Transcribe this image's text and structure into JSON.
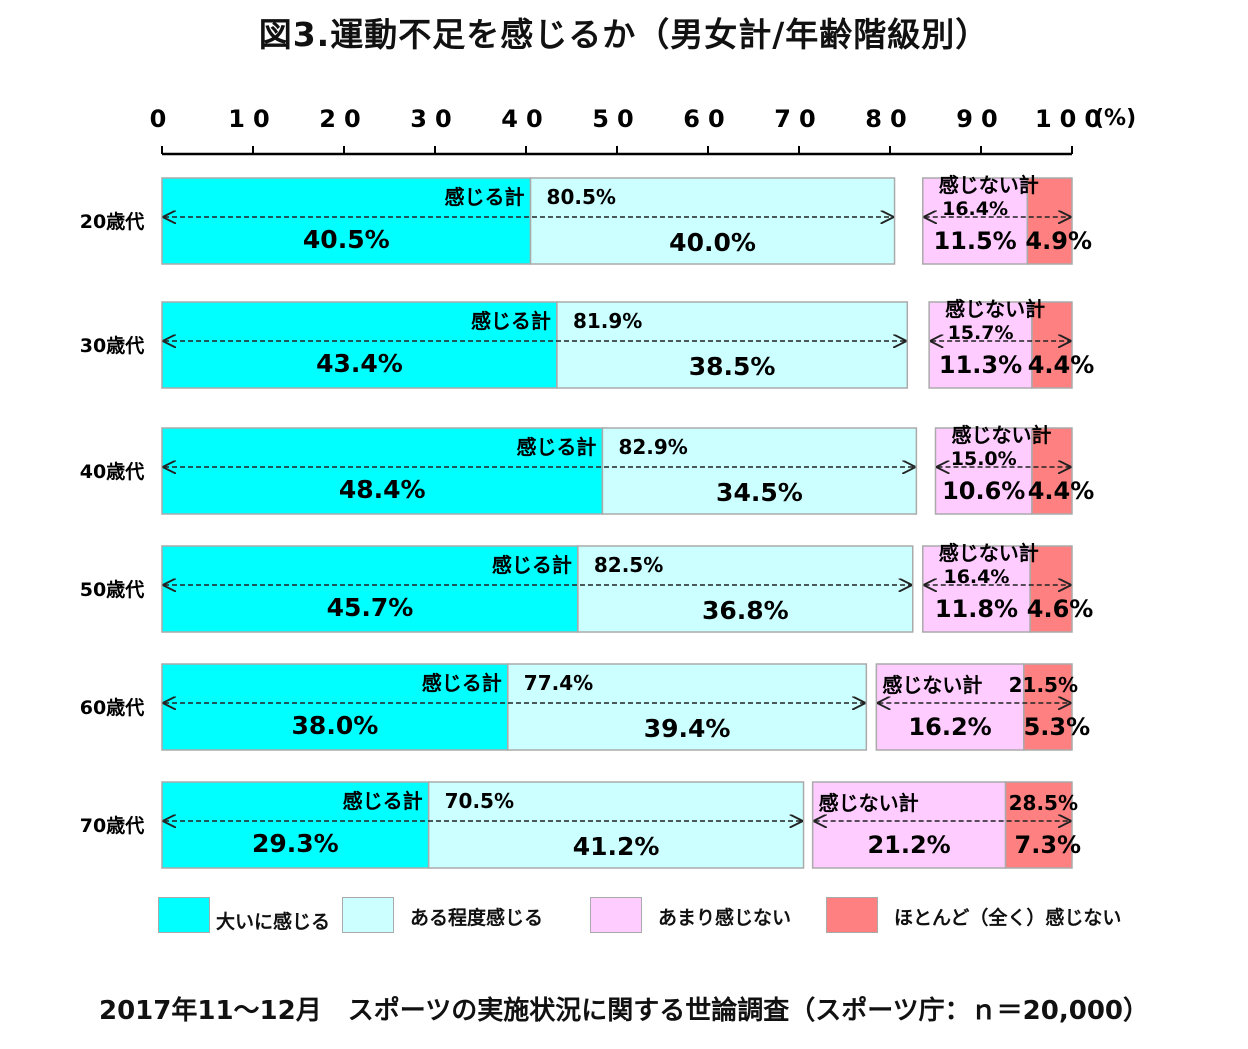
{
  "title": "図3.運動不足を感じるか（男女計/年齢階級別）",
  "source": "2017年11～12月　スポーツの実施状況に関する世論調査（スポーツ庁：ｎ＝20,000）",
  "chart_data": {
    "type": "bar",
    "orientation": "horizontal",
    "stacked": true,
    "title": "図3.運動不足を感じるか（男女計/年齢階級別）",
    "unit_label": "(%)",
    "xlim": [
      0,
      100
    ],
    "x_ticks": [
      "0",
      "10",
      "20",
      "30",
      "40",
      "50",
      "60",
      "70",
      "80",
      "90",
      "100"
    ],
    "legend_position": "bottom",
    "categories": [
      "20歳代",
      "30歳代",
      "40歳代",
      "50歳代",
      "60歳代",
      "70歳代"
    ],
    "series": [
      {
        "name": "大いに感じる",
        "color": "#00ffff",
        "values": [
          40.5,
          43.4,
          48.4,
          45.7,
          38.0,
          29.3
        ],
        "labels": [
          "40.5%",
          "43.4%",
          "48.4%",
          "45.7%",
          "38.0%",
          "29.3%"
        ]
      },
      {
        "name": "ある程度感じる",
        "color": "#ccffff",
        "values": [
          40.0,
          38.5,
          34.5,
          36.8,
          39.4,
          41.2
        ],
        "labels": [
          "40.0%",
          "38.5%",
          "34.5%",
          "36.8%",
          "39.4%",
          "41.2%"
        ]
      },
      {
        "name": "あまり感じない",
        "color": "#ffccff",
        "values": [
          11.5,
          11.3,
          10.6,
          11.8,
          16.2,
          21.2
        ],
        "labels": [
          "11.5%",
          "11.3%",
          "10.6%",
          "11.8%",
          "16.2%",
          "21.2%"
        ]
      },
      {
        "name": "ほとんど（全く）感じない",
        "color": "#ff8080",
        "values": [
          4.9,
          4.4,
          4.4,
          4.6,
          5.3,
          7.3
        ],
        "labels": [
          "4.9%",
          "4.4%",
          "4.4%",
          "4.6%",
          "5.3%",
          "7.3%"
        ]
      }
    ],
    "totals": {
      "feel_label": "感じる計",
      "feel_values": [
        "80.5%",
        "81.9%",
        "82.9%",
        "82.5%",
        "77.4%",
        "70.5%"
      ],
      "not_feel_label": "感じない計",
      "not_feel_values": [
        "16.4%",
        "15.7%",
        "15.0%",
        "16.4%",
        "21.5%",
        "28.5%"
      ]
    }
  }
}
